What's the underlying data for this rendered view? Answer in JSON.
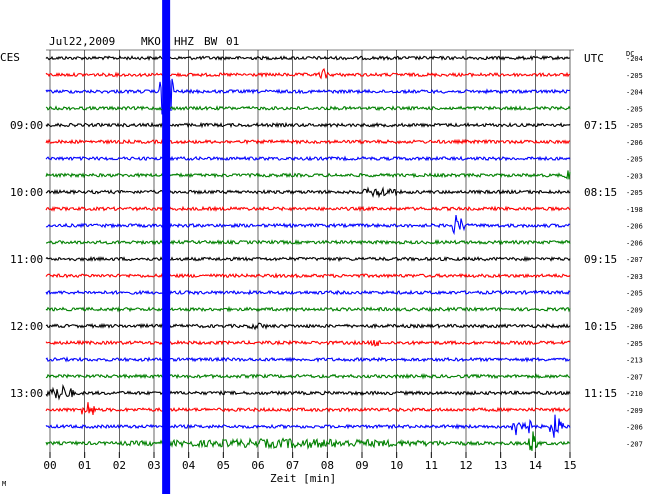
{
  "header": {
    "date": "Jul22,2009",
    "station": "MKO",
    "channel": "HHZ",
    "network": "BW",
    "location": "01"
  },
  "left_tz": "CES",
  "right_tz": "UTC",
  "dc_label": "DC",
  "chart_data": {
    "type": "line",
    "title": "Jul22,2009  MKO HHZ BW 01",
    "xlabel": "Zeit [min]",
    "xlim": [
      0,
      15
    ],
    "x_ticks": [
      "00",
      "01",
      "02",
      "03",
      "04",
      "05",
      "06",
      "07",
      "08",
      "09",
      "10",
      "11",
      "12",
      "13",
      "14",
      "15"
    ],
    "grid": true,
    "trace_colors": [
      "#000000",
      "#ff0000",
      "#0000ff",
      "#008000"
    ],
    "left_hour_labels": [
      {
        "row": 4,
        "text": "09:00"
      },
      {
        "row": 8,
        "text": "10:00"
      },
      {
        "row": 12,
        "text": "11:00"
      },
      {
        "row": 16,
        "text": "12:00"
      },
      {
        "row": 20,
        "text": "13:00"
      }
    ],
    "right_hour_labels": [
      {
        "row": 0,
        "text": "UTC"
      },
      {
        "row": 4,
        "text": "07:15"
      },
      {
        "row": 8,
        "text": "08:15"
      },
      {
        "row": 12,
        "text": "09:15"
      },
      {
        "row": 16,
        "text": "10:15"
      },
      {
        "row": 20,
        "text": "11:15"
      }
    ],
    "dc_offsets": [
      "-204",
      "-205",
      "-204",
      "-205",
      "-205",
      "-206",
      "-205",
      "-203",
      "-205",
      "-198",
      "-206",
      "-206",
      "-207",
      "-203",
      "-205",
      "-209",
      "-206",
      "-205",
      "-213",
      "-207",
      "-210",
      "-209",
      "-206",
      "-207"
    ],
    "events": [
      {
        "row": 2,
        "t": 3.35,
        "amp": 40,
        "dur": 0.2,
        "note": "saturated"
      },
      {
        "row": 1,
        "t": 7.9,
        "amp": 6,
        "dur": 0.15
      },
      {
        "row": 8,
        "t": 9.5,
        "amp": 6,
        "dur": 0.5
      },
      {
        "row": 7,
        "t": 14.95,
        "amp": 7,
        "dur": 0.1
      },
      {
        "row": 10,
        "t": 11.75,
        "amp": 12,
        "dur": 0.2
      },
      {
        "row": 17,
        "t": 9.4,
        "amp": 5,
        "dur": 0.15
      },
      {
        "row": 16,
        "t": 6.0,
        "amp": 4,
        "dur": 0.3
      },
      {
        "row": 20,
        "t": 0.3,
        "amp": 9,
        "dur": 0.4
      },
      {
        "row": 21,
        "t": 1.1,
        "amp": 10,
        "dur": 0.2
      },
      {
        "row": 22,
        "t": 13.6,
        "amp": 14,
        "dur": 0.3
      },
      {
        "row": 22,
        "t": 14.6,
        "amp": 14,
        "dur": 0.2
      },
      {
        "row": 23,
        "t": 13.95,
        "amp": 14,
        "dur": 0.15
      },
      {
        "row": 23,
        "t": 7.0,
        "amp": 5,
        "dur": 5.0
      }
    ]
  },
  "footer_mark": "M"
}
